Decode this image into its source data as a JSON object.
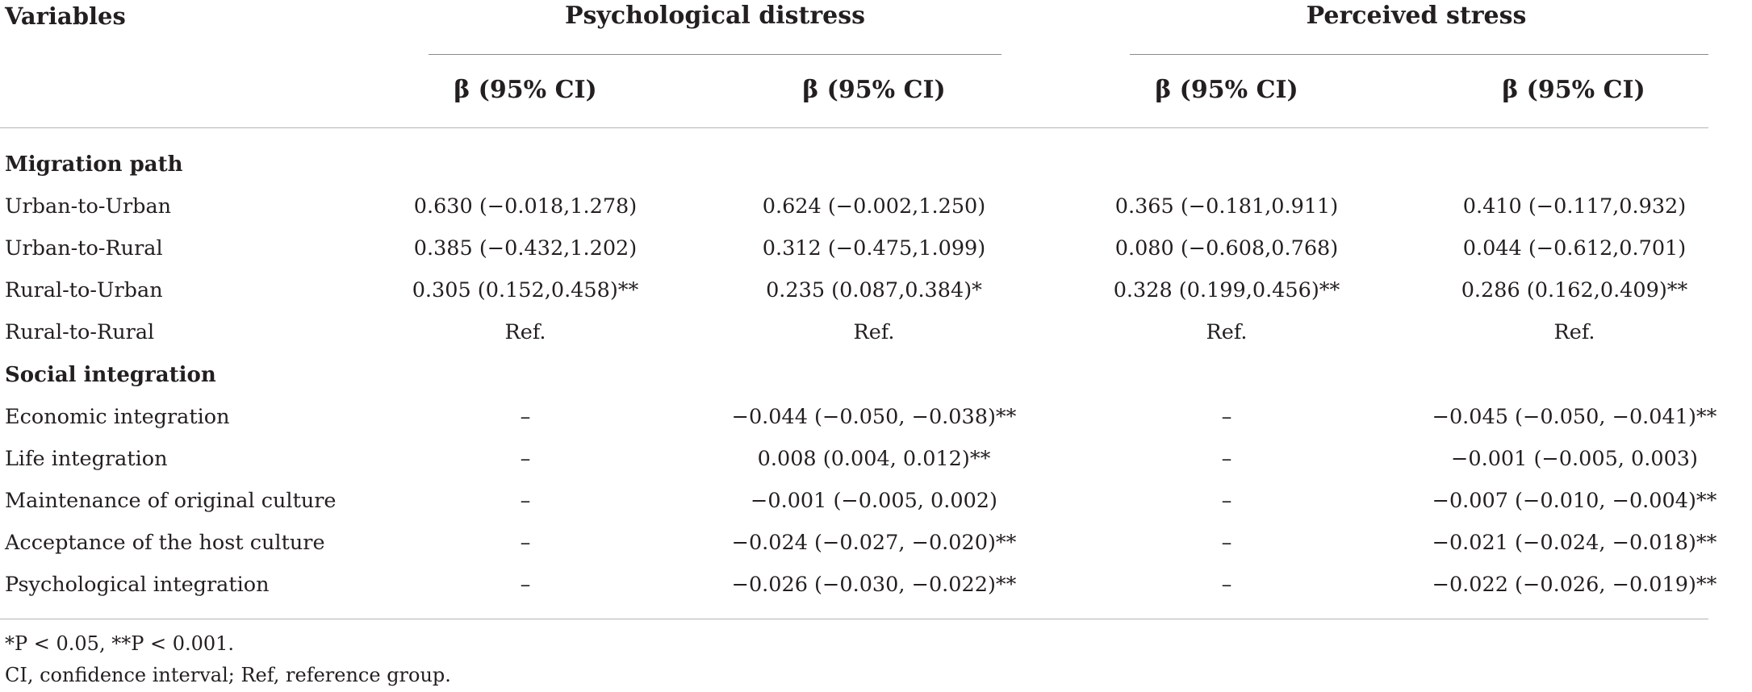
{
  "header": {
    "variables": "Variables",
    "groups": [
      "Psychological distress",
      "Perceived stress"
    ],
    "columns": [
      "β (95% CI)",
      "β (95% CI)",
      "β (95% CI)",
      "β (95% CI)"
    ]
  },
  "sections": [
    {
      "title": "Migration path",
      "rows": [
        {
          "label": "Urban-to-Urban",
          "cells": [
            "0.630 (−0.018,1.278)",
            "0.624 (−0.002,1.250)",
            "0.365 (−0.181,0.911)",
            "0.410 (−0.117,0.932)"
          ]
        },
        {
          "label": "Urban-to-Rural",
          "cells": [
            "0.385 (−0.432,1.202)",
            "0.312 (−0.475,1.099)",
            "0.080 (−0.608,0.768)",
            "0.044 (−0.612,0.701)"
          ]
        },
        {
          "label": "Rural-to-Urban",
          "cells": [
            "0.305 (0.152,0.458)**",
            "0.235 (0.087,0.384)*",
            "0.328 (0.199,0.456)**",
            "0.286 (0.162,0.409)**"
          ]
        },
        {
          "label": "Rural-to-Rural",
          "cells": [
            "Ref.",
            "Ref.",
            "Ref.",
            "Ref."
          ]
        }
      ]
    },
    {
      "title": "Social integration",
      "rows": [
        {
          "label": "Economic integration",
          "cells": [
            "–",
            "−0.044 (−0.050, −0.038)**",
            "–",
            "−0.045 (−0.050, −0.041)**"
          ]
        },
        {
          "label": "Life integration",
          "cells": [
            "–",
            "0.008 (0.004, 0.012)**",
            "–",
            "−0.001 (−0.005, 0.003)"
          ]
        },
        {
          "label": "Maintenance of original culture",
          "cells": [
            "–",
            "−0.001 (−0.005, 0.002)",
            "–",
            "−0.007 (−0.010, −0.004)**"
          ]
        },
        {
          "label": "Acceptance of the host culture",
          "cells": [
            "–",
            "−0.024 (−0.027, −0.020)**",
            "–",
            "−0.021 (−0.024, −0.018)**"
          ]
        },
        {
          "label": "Psychological integration",
          "cells": [
            "–",
            "−0.026 (−0.030, −0.022)**",
            "–",
            "−0.022 (−0.026, −0.019)**"
          ]
        }
      ]
    }
  ],
  "footnotes": [
    "*P < 0.05, **P < 0.001.",
    "CI, confidence interval; Ref, reference group."
  ]
}
